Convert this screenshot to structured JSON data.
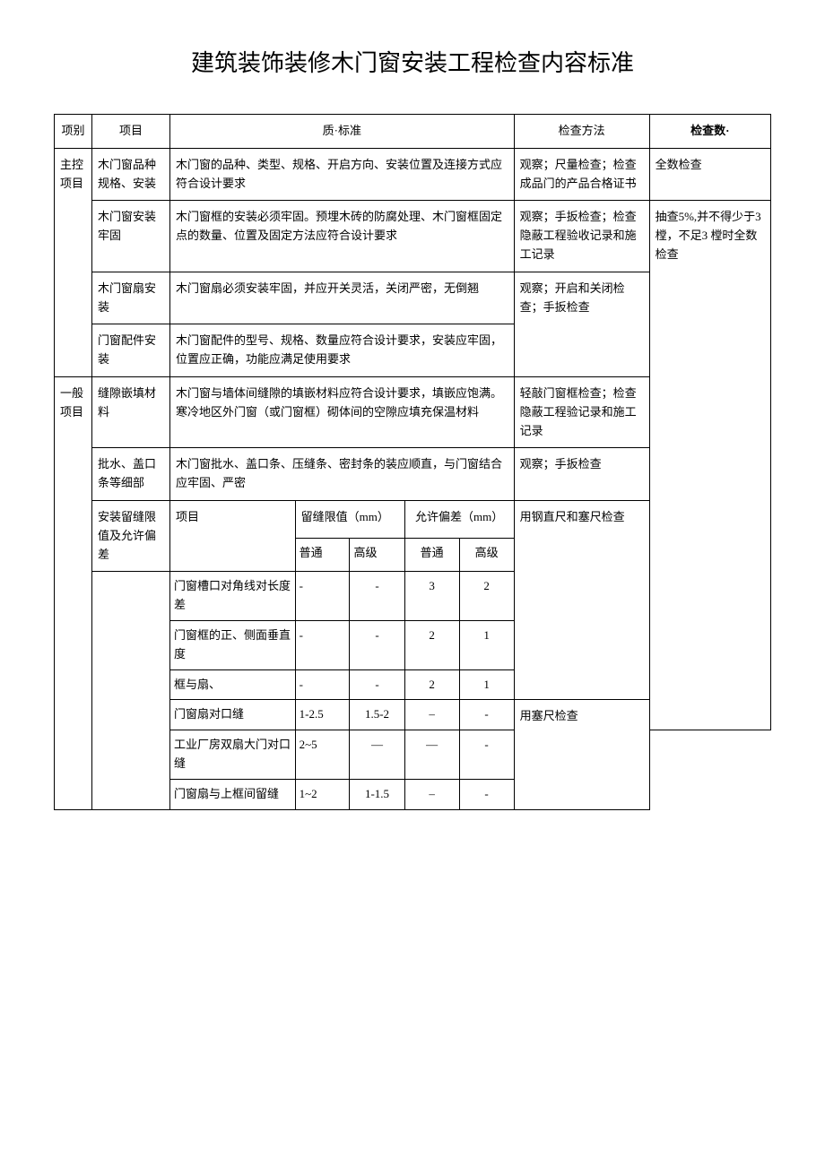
{
  "title": "建筑装饰装修木门窗安装工程检查内容标准",
  "headers": {
    "col1": "项别",
    "col2": "项目",
    "col3": "质·标准",
    "col4": "检查方法",
    "col5": "检查数·"
  },
  "section1": {
    "label": "主控项目",
    "rows": [
      {
        "item": "木门窗品种规格、安装",
        "standard": "木门窗的品种、类型、规格、开启方向、安装位置及连接方式应符合设计要求",
        "method": "观察；尺量检查；检查成品门的产品合格证书",
        "qty": "全数检查"
      },
      {
        "item": "木门窗安装牢固",
        "standard": "木门窗框的安装必须牢固。预埋木砖的防腐处理、木门窗框固定点的数量、位置及固定方法应符合设计要求",
        "method": "观察；手扳检查；检查隐蔽工程验收记录和施工记录",
        "qty": ""
      },
      {
        "item": "木门窗扇安装",
        "standard": "木门窗扇必须安装牢固，并应开关灵活，关闭严密，无倒翘",
        "method": "观察；开启和关闭检查；手扳检查",
        "qty": "抽查5%,并不得少于3 樘，不足3 樘时全数检查"
      },
      {
        "item": "门窗配件安装",
        "standard": "木门窗配件的型号、规格、数量应符合设计要求，安装应牢固，位置应正确，功能应满足使用要求"
      }
    ]
  },
  "section2": {
    "label": "一般项目",
    "rows": [
      {
        "item": "缝隙嵌填材料",
        "standard": "木门窗与墙体间缝隙的填嵌材料应符合设计要求，填嵌应饱满。寒冷地区外门窗（或门窗框）砌体间的空隙应填充保温材料",
        "method": "轻敲门窗框检查；检查隐蔽工程验记录和施工记录"
      },
      {
        "item": "批水、盖口条等细部",
        "standard": "木门窗批水、盖口条、压缝条、密封条的装应顺直，与门窗结合应牢固、严密",
        "method": "观察；手扳检查"
      }
    ],
    "tolerance": {
      "item": "安装留缝限值及允许偏差",
      "sub_header": {
        "proj": "项目",
        "gap_limit": "留缝限值（mm）",
        "deviation": "允许偏差（mm）",
        "normal": "普通",
        "advanced": "高级"
      },
      "method1": "用钢直尺和塞尺检查",
      "method2": "用塞尺检查",
      "rows": [
        {
          "proj": "门窗槽口对角线对长度差",
          "g1": "-",
          "g2": "-",
          "d1": "3",
          "d2": "2"
        },
        {
          "proj": "门窗框的正、侧面垂直度",
          "g1": "-",
          "g2": "-",
          "d1": "2",
          "d2": "1"
        },
        {
          "proj": "框与扇、",
          "g1": "-",
          "g2": "-",
          "d1": "2",
          "d2": "1"
        },
        {
          "proj": "门窗扇对口缝",
          "g1": "1-2.5",
          "g2": "1.5-2",
          "d1": "–",
          "d2": "-"
        },
        {
          "proj": "工业厂房双扇大门对口缝",
          "g1": "2~5",
          "g2": "—",
          "d1": "—",
          "d2": "-"
        },
        {
          "proj": "门窗扇与上框间留缝",
          "g1": "1~2",
          "g2": "1-1.5",
          "d1": "–",
          "d2": "-"
        }
      ]
    }
  }
}
